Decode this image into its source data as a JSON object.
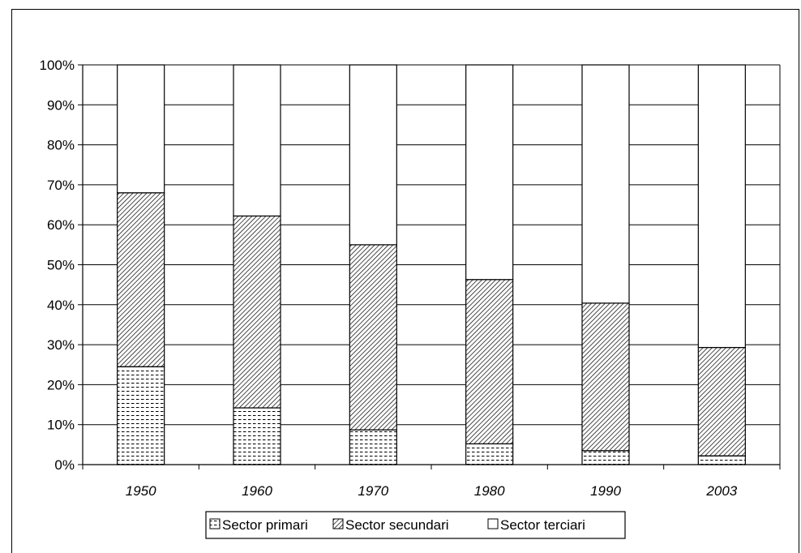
{
  "chart_data": {
    "type": "bar",
    "stacked": true,
    "percent_stacked": true,
    "categories": [
      "1950",
      "1960",
      "1970",
      "1980",
      "1990",
      "2003"
    ],
    "series": [
      {
        "name": "Sector primari",
        "pattern": "dotted-dash",
        "values": [
          24.5,
          14.2,
          8.7,
          5.2,
          3.5,
          2.2
        ]
      },
      {
        "name": "Sector secundari",
        "pattern": "diagonal-hatch",
        "values": [
          43.5,
          48.0,
          46.3,
          41.1,
          36.9,
          27.1
        ]
      },
      {
        "name": "Sector terciari",
        "pattern": "white",
        "values": [
          32.0,
          37.8,
          45.0,
          53.7,
          59.6,
          70.7
        ]
      }
    ],
    "yticks": [
      "0%",
      "10%",
      "20%",
      "30%",
      "40%",
      "50%",
      "60%",
      "70%",
      "80%",
      "90%",
      "100%"
    ],
    "ylim": [
      0,
      100
    ],
    "grid": true,
    "legend_position": "bottom",
    "title": "",
    "xlabel": "",
    "ylabel": ""
  },
  "colors": {
    "line": "#000000",
    "fill": "#ffffff"
  }
}
